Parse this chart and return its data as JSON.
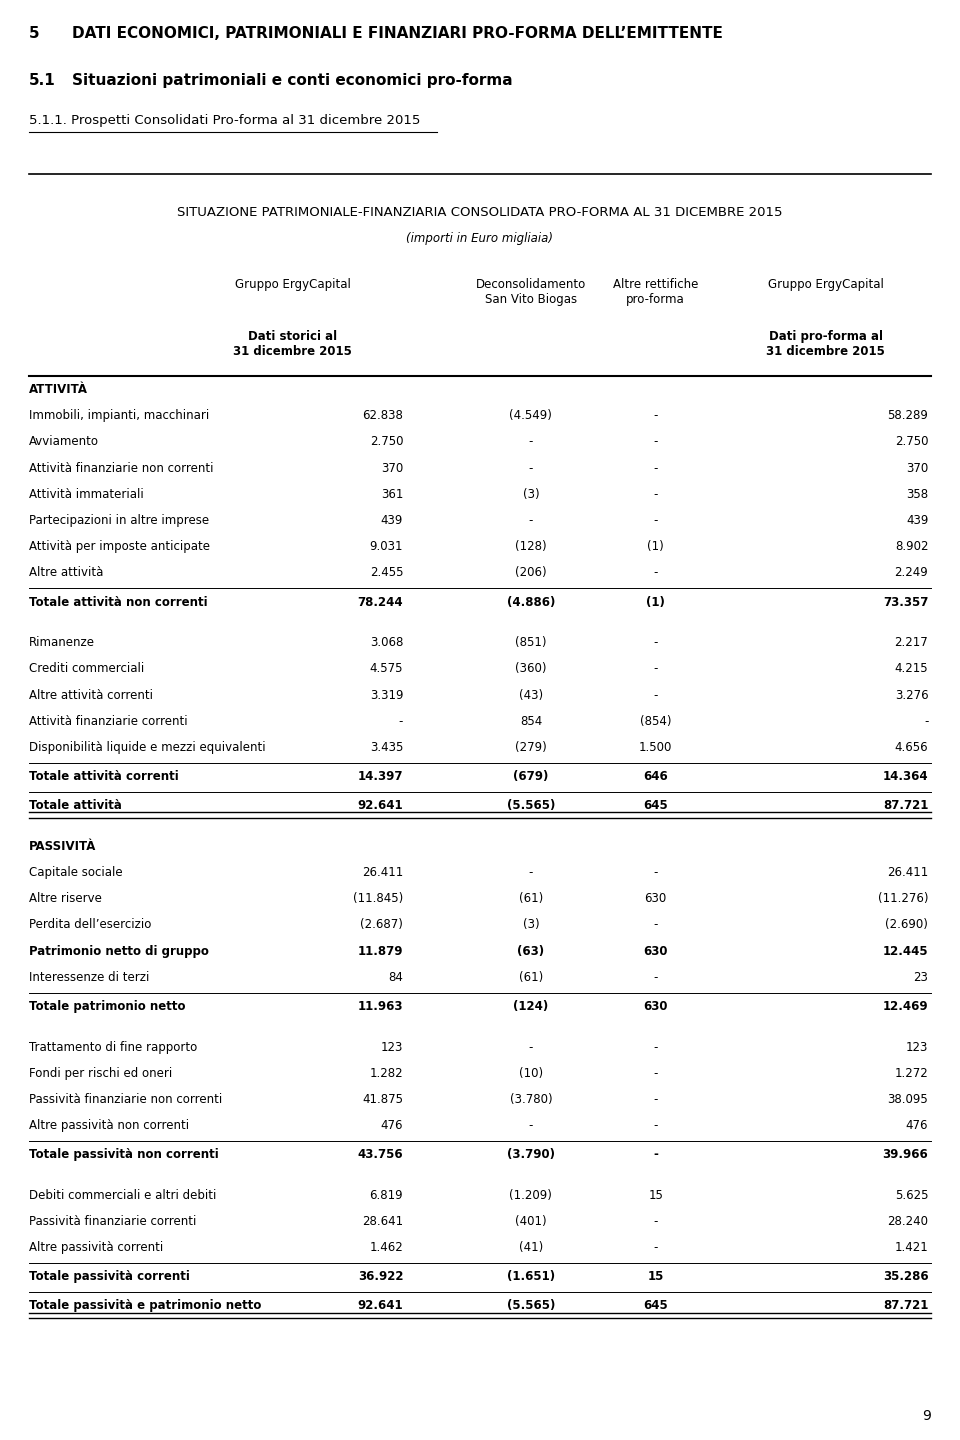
{
  "page_number": "9",
  "header_line1": "5",
  "header_title1": "DATI ECONOMICI, PATRIMONIALI E FINANZIARI PRO-FORMA DELL’EMITTENTE",
  "header_line2": "5.1",
  "header_title2": "Situazioni patrimoniali e conti economici pro-forma",
  "header_line3": "5.1.1.",
  "header_title3": "Prospetti Consolidati Pro-forma al 31 dicembre 2015",
  "table_title": "SITUAZIONE PATRIMONIALE-FINANZIARIA CONSOLIDATA PRO-FORMA AL 31 DICEMBRE 2015",
  "table_subtitle": "(importi in Euro migliaia)",
  "col1_head1": "Gruppo ErgyCapital",
  "col2_head1": "Deconsolidamento\nSan Vito Biogas",
  "col3_head1": "Altre rettifiche\npro-forma",
  "col4_head1": "Gruppo ErgyCapital",
  "col1_head2": "Dati storici al\n31 dicembre 2015",
  "col4_head2": "Dati pro-forma al\n31 dicembre 2015",
  "rows": [
    {
      "label": "ATTIVITÀ",
      "v1": "",
      "v2": "",
      "v3": "",
      "v4": "",
      "bold": true,
      "section": true
    },
    {
      "label": "Immobili, impianti, macchinari",
      "v1": "62.838",
      "v2": "(4.549)",
      "v3": "-",
      "v4": "58.289",
      "bold": false
    },
    {
      "label": "Avviamento",
      "v1": "2.750",
      "v2": "-",
      "v3": "-",
      "v4": "2.750",
      "bold": false
    },
    {
      "label": "Attività finanziarie non correnti",
      "v1": "370",
      "v2": "-",
      "v3": "-",
      "v4": "370",
      "bold": false
    },
    {
      "label": "Attività immateriali",
      "v1": "361",
      "v2": "(3)",
      "v3": "-",
      "v4": "358",
      "bold": false
    },
    {
      "label": "Partecipazioni in altre imprese",
      "v1": "439",
      "v2": "-",
      "v3": "-",
      "v4": "439",
      "bold": false
    },
    {
      "label": "Attività per imposte anticipate",
      "v1": "9.031",
      "v2": "(128)",
      "v3": "(1)",
      "v4": "8.902",
      "bold": false
    },
    {
      "label": "Altre attività",
      "v1": "2.455",
      "v2": "(206)",
      "v3": "-",
      "v4": "2.249",
      "bold": false
    },
    {
      "label": "Totale attività non correnti",
      "v1": "78.244",
      "v2": "(4.886)",
      "v3": "(1)",
      "v4": "73.357",
      "bold": true,
      "line_above": true
    },
    {
      "label": "",
      "v1": "",
      "v2": "",
      "v3": "",
      "v4": "",
      "spacer": true
    },
    {
      "label": "Rimanenze",
      "v1": "3.068",
      "v2": "(851)",
      "v3": "-",
      "v4": "2.217",
      "bold": false
    },
    {
      "label": "Crediti commerciali",
      "v1": "4.575",
      "v2": "(360)",
      "v3": "-",
      "v4": "4.215",
      "bold": false
    },
    {
      "label": "Altre attività correnti",
      "v1": "3.319",
      "v2": "(43)",
      "v3": "-",
      "v4": "3.276",
      "bold": false
    },
    {
      "label": "Attività finanziarie correnti",
      "v1": "-",
      "v2": "854",
      "v3": "(854)",
      "v4": "-",
      "bold": false
    },
    {
      "label": "Disponibilità liquide e mezzi equivalenti",
      "v1": "3.435",
      "v2": "(279)",
      "v3": "1.500",
      "v4": "4.656",
      "bold": false
    },
    {
      "label": "Totale attività correnti",
      "v1": "14.397",
      "v2": "(679)",
      "v3": "646",
      "v4": "14.364",
      "bold": true,
      "line_above": true
    },
    {
      "label": "Totale attività",
      "v1": "92.641",
      "v2": "(5.565)",
      "v3": "645",
      "v4": "87.721",
      "bold": true,
      "line_above": true,
      "double_bottom": true
    },
    {
      "label": "",
      "v1": "",
      "v2": "",
      "v3": "",
      "v4": "",
      "spacer": true
    },
    {
      "label": "PASSIVITÀ",
      "v1": "",
      "v2": "",
      "v3": "",
      "v4": "",
      "bold": true,
      "section": true
    },
    {
      "label": "Capitale sociale",
      "v1": "26.411",
      "v2": "-",
      "v3": "-",
      "v4": "26.411",
      "bold": false
    },
    {
      "label": "Altre riserve",
      "v1": "(11.845)",
      "v2": "(61)",
      "v3": "630",
      "v4": "(11.276)",
      "bold": false
    },
    {
      "label": "Perdita dell’esercizio",
      "v1": "(2.687)",
      "v2": "(3)",
      "v3": "-",
      "v4": "(2.690)",
      "bold": false
    },
    {
      "label": "Patrimonio netto di gruppo",
      "v1": "11.879",
      "v2": "(63)",
      "v3": "630",
      "v4": "12.445",
      "bold": true
    },
    {
      "label": "Interessenze di terzi",
      "v1": "84",
      "v2": "(61)",
      "v3": "-",
      "v4": "23",
      "bold": false
    },
    {
      "label": "Totale patrimonio netto",
      "v1": "11.963",
      "v2": "(124)",
      "v3": "630",
      "v4": "12.469",
      "bold": true,
      "line_above": true
    },
    {
      "label": "",
      "v1": "",
      "v2": "",
      "v3": "",
      "v4": "",
      "spacer": true
    },
    {
      "label": "Trattamento di fine rapporto",
      "v1": "123",
      "v2": "-",
      "v3": "-",
      "v4": "123",
      "bold": false
    },
    {
      "label": "Fondi per rischi ed oneri",
      "v1": "1.282",
      "v2": "(10)",
      "v3": "-",
      "v4": "1.272",
      "bold": false
    },
    {
      "label": "Passività finanziarie non correnti",
      "v1": "41.875",
      "v2": "(3.780)",
      "v3": "-",
      "v4": "38.095",
      "bold": false
    },
    {
      "label": "Altre passività non correnti",
      "v1": "476",
      "v2": "-",
      "v3": "-",
      "v4": "476",
      "bold": false
    },
    {
      "label": "Totale passività non correnti",
      "v1": "43.756",
      "v2": "(3.790)",
      "v3": "-",
      "v4": "39.966",
      "bold": true,
      "line_above": true
    },
    {
      "label": "",
      "v1": "",
      "v2": "",
      "v3": "",
      "v4": "",
      "spacer": true
    },
    {
      "label": "Debiti commerciali e altri debiti",
      "v1": "6.819",
      "v2": "(1.209)",
      "v3": "15",
      "v4": "5.625",
      "bold": false
    },
    {
      "label": "Passività finanziarie correnti",
      "v1": "28.641",
      "v2": "(401)",
      "v3": "-",
      "v4": "28.240",
      "bold": false
    },
    {
      "label": "Altre passività correnti",
      "v1": "1.462",
      "v2": "(41)",
      "v3": "-",
      "v4": "1.421",
      "bold": false
    },
    {
      "label": "Totale passività correnti",
      "v1": "36.922",
      "v2": "(1.651)",
      "v3": "15",
      "v4": "35.286",
      "bold": true,
      "line_above": true
    },
    {
      "label": "Totale passività e patrimonio netto",
      "v1": "92.641",
      "v2": "(5.565)",
      "v3": "645",
      "v4": "87.721",
      "bold": true,
      "line_above": true,
      "double_bottom": true
    }
  ]
}
